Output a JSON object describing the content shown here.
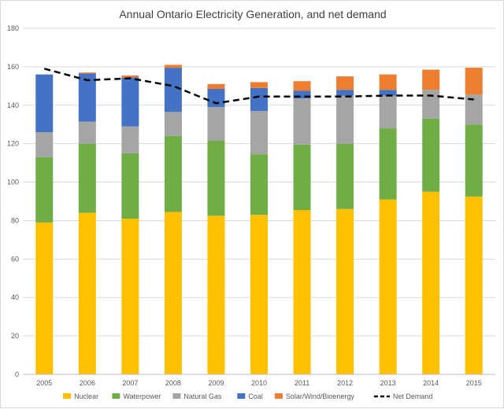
{
  "chart_data": {
    "type": "bar",
    "stacked": true,
    "title": "Annual Ontario Electricity Generation, and net demand",
    "xlabel": "",
    "ylabel": "",
    "ylim": [
      0,
      180
    ],
    "yticks": [
      0,
      20,
      40,
      60,
      80,
      100,
      120,
      140,
      160,
      180
    ],
    "grid": true,
    "legend_position": "bottom",
    "categories": [
      "2005",
      "2006",
      "2007",
      "2008",
      "2009",
      "2010",
      "2011",
      "2012",
      "2013",
      "2014",
      "2015"
    ],
    "series": [
      {
        "name": "Nuclear",
        "color": "#FFC000",
        "values": [
          79,
          84,
          81,
          84.5,
          82.5,
          83,
          85.5,
          86,
          91,
          95,
          92.5
        ]
      },
      {
        "name": "Waterpower",
        "color": "#70AD47",
        "values": [
          34,
          36,
          34,
          39.5,
          39,
          31.5,
          34,
          34,
          37,
          38,
          37.5
        ]
      },
      {
        "name": "Natural Gas",
        "color": "#A5A5A5",
        "values": [
          13,
          11.5,
          14,
          12.5,
          17.5,
          22.5,
          24,
          25,
          17,
          15,
          15.5
        ]
      },
      {
        "name": "Coal",
        "color": "#4472C4",
        "values": [
          30,
          25,
          25.5,
          23,
          9.5,
          12,
          4,
          3,
          3,
          0,
          0
        ]
      },
      {
        "name": "Solar/Wind/Bioenergy",
        "color": "#ED7D31",
        "values": [
          0,
          0.5,
          1,
          1.5,
          2.5,
          3,
          5,
          7,
          8,
          10.5,
          14
        ]
      }
    ],
    "line_series": {
      "name": "Net Demand",
      "color": "#000000",
      "style": "dashed",
      "values": [
        159,
        153,
        154,
        150,
        141,
        144.5,
        144.5,
        144.5,
        145,
        145,
        143
      ]
    }
  }
}
